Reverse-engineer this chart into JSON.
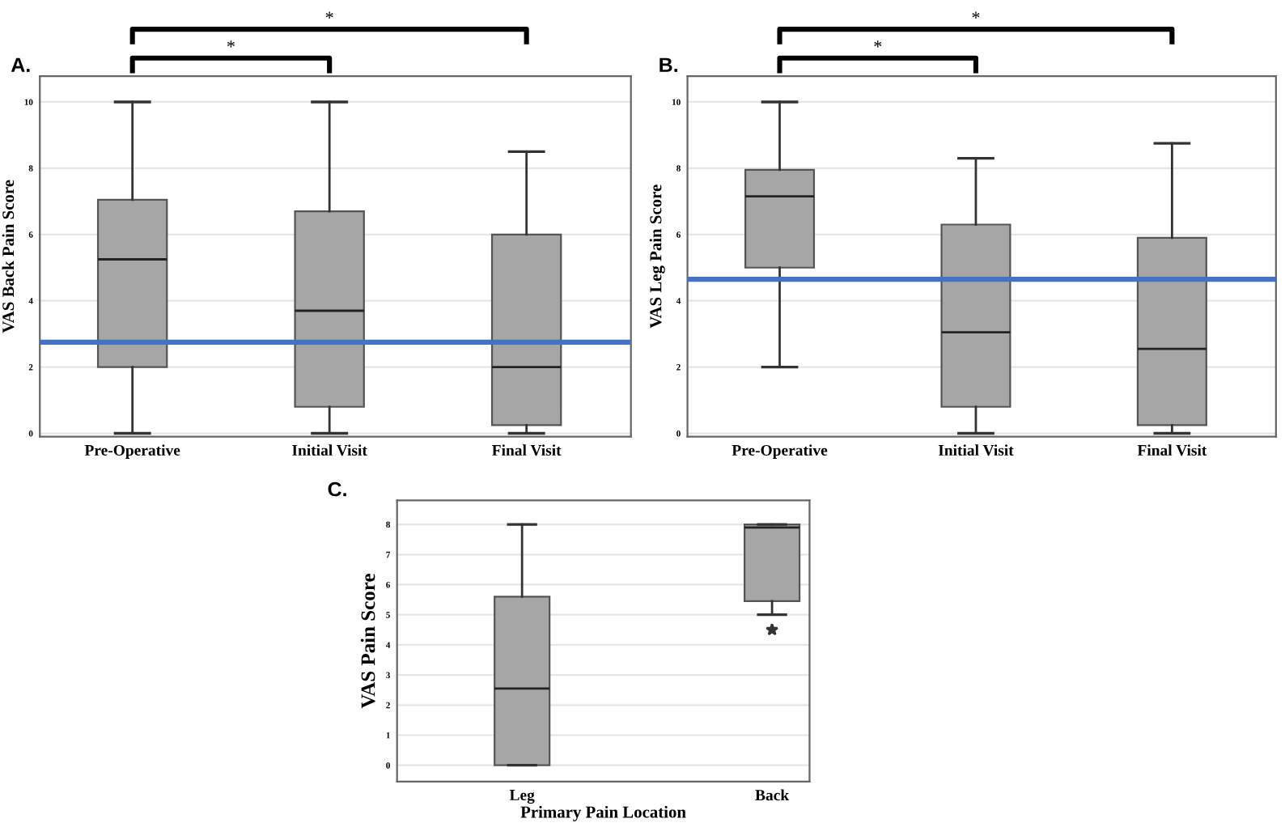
{
  "chart_data": [
    {
      "type": "box",
      "title": "A.",
      "ylabel": "VAS Back Pain Score",
      "categories": [
        "Pre-Operative",
        "Initial Visit",
        "Final Visit"
      ],
      "color": "#a6a6a6",
      "boxes": [
        {
          "low": 0,
          "q1": 2,
          "median": 5.25,
          "q3": 7.05,
          "high": 10
        },
        {
          "low": 0,
          "q1": 0.8,
          "median": 3.7,
          "q3": 6.7,
          "high": 10
        },
        {
          "low": 0,
          "q1": 0.25,
          "median": 2,
          "q3": 6,
          "high": 8.5
        }
      ],
      "ylim": [
        -0.1,
        10.78
      ],
      "yticks": [
        0,
        2,
        4,
        6,
        8,
        10
      ],
      "grid": "y",
      "ref_lines": [
        {
          "axis": "y",
          "value": 2.75,
          "color": "#4472c4"
        }
      ],
      "annotations": [
        "*",
        "*"
      ]
    },
    {
      "type": "box",
      "title": "B.",
      "ylabel": "VAS Leg Pain Score",
      "categories": [
        "Pre-Operative",
        "Initial Visit",
        "Final Visit"
      ],
      "color": "#a6a6a6",
      "boxes": [
        {
          "low": 2,
          "q1": 5,
          "median": 7.15,
          "q3": 7.95,
          "high": 10
        },
        {
          "low": 0,
          "q1": 0.8,
          "median": 3.05,
          "q3": 6.3,
          "high": 8.3
        },
        {
          "low": 0,
          "q1": 0.25,
          "median": 2.55,
          "q3": 5.9,
          "high": 8.75
        }
      ],
      "ylim": [
        -0.1,
        10.78
      ],
      "yticks": [
        0,
        2,
        4,
        6,
        8,
        10
      ],
      "grid": "y",
      "ref_lines": [
        {
          "axis": "y",
          "value": 4.65,
          "color": "#4472c4"
        }
      ],
      "annotations": [
        "*",
        "*"
      ]
    },
    {
      "type": "box",
      "title": "C.",
      "ylabel": "VAS Pain Score",
      "xlabel": "Primary Pain Location",
      "categories": [
        "Leg",
        "Back"
      ],
      "color": "#a6a6a6",
      "boxes": [
        {
          "low": 0,
          "q1": 0,
          "median": 2.55,
          "q3": 5.6,
          "high": 8
        },
        {
          "low": 5,
          "q1": 5.45,
          "median": 7.9,
          "q3": 8,
          "high": 8,
          "outliers": [
            4.5
          ]
        }
      ],
      "ylim": [
        -0.54,
        8.8
      ],
      "yticks": [
        0,
        1,
        2,
        3,
        4,
        5,
        6,
        7,
        8
      ],
      "grid": "y"
    }
  ]
}
